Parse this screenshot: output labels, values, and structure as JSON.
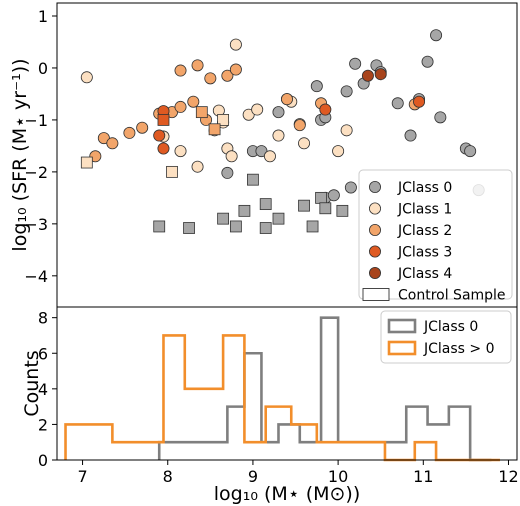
{
  "chart_data": [
    {
      "type": "scatter",
      "ylabel": "log₁₀ (SFR (M⋆ yr⁻¹))",
      "xlim": [
        6.7,
        12.1
      ],
      "ylim": [
        -4.6,
        1.25
      ],
      "yticks": [
        "1",
        "0",
        "−1",
        "−2",
        "−3",
        "−4"
      ],
      "ytick_values": [
        1,
        0,
        -1,
        -2,
        -3,
        -4
      ],
      "colors": {
        "JClass 0": "#a6a6a6",
        "JClass 1": "#fce0c2",
        "JClass 2": "#f2a56a",
        "JClass 3": "#df5a22",
        "JClass 4": "#a8441c"
      },
      "legend": {
        "position": "lower-right",
        "entries": [
          "JClass 0",
          "JClass 1",
          "JClass 2",
          "JClass 3",
          "JClass 4",
          "Control Sample"
        ]
      },
      "series": [
        {
          "name": "JClass 0",
          "marker": "circle",
          "points": [
            [
              8.7,
              -2.02
            ],
            [
              9.0,
              -1.6
            ],
            [
              9.1,
              -1.6
            ],
            [
              9.3,
              -0.85
            ],
            [
              9.4,
              -0.6
            ],
            [
              9.75,
              -0.35
            ],
            [
              9.8,
              -1.0
            ],
            [
              9.85,
              -0.95
            ],
            [
              9.85,
              -2.5
            ],
            [
              9.95,
              -2.45
            ],
            [
              10.1,
              -0.45
            ],
            [
              10.15,
              -2.3
            ],
            [
              10.2,
              0.08
            ],
            [
              10.3,
              -0.3
            ],
            [
              10.45,
              0.05
            ],
            [
              10.5,
              -0.08
            ],
            [
              10.7,
              -0.68
            ],
            [
              10.85,
              -1.3
            ],
            [
              10.95,
              -0.6
            ],
            [
              11.05,
              0.12
            ],
            [
              11.15,
              0.63
            ],
            [
              11.2,
              -0.95
            ],
            [
              11.5,
              -1.55
            ],
            [
              11.55,
              -1.6
            ],
            [
              11.65,
              -2.35
            ]
          ]
        },
        {
          "name": "JClass 1",
          "marker": "circle",
          "points": [
            [
              7.05,
              -0.18
            ],
            [
              7.95,
              -1.32
            ],
            [
              8.15,
              -1.6
            ],
            [
              8.35,
              -1.9
            ],
            [
              8.55,
              -1.2
            ],
            [
              8.6,
              -0.82
            ],
            [
              8.65,
              -1.05
            ],
            [
              8.7,
              -1.55
            ],
            [
              8.75,
              -1.7
            ],
            [
              8.8,
              0.45
            ],
            [
              8.95,
              -0.9
            ],
            [
              9.05,
              -0.8
            ],
            [
              9.2,
              -1.7
            ],
            [
              9.3,
              -1.3
            ],
            [
              9.45,
              -0.65
            ],
            [
              9.55,
              -1.08
            ],
            [
              9.6,
              -1.45
            ],
            [
              10.0,
              -1.6
            ],
            [
              10.1,
              -1.2
            ]
          ]
        },
        {
          "name": "JClass 2",
          "marker": "circle",
          "points": [
            [
              7.15,
              -1.7
            ],
            [
              7.25,
              -1.35
            ],
            [
              7.35,
              -1.45
            ],
            [
              7.55,
              -1.25
            ],
            [
              7.7,
              -1.15
            ],
            [
              7.9,
              -0.88
            ],
            [
              8.05,
              -0.85
            ],
            [
              8.15,
              -0.05
            ],
            [
              8.15,
              -0.75
            ],
            [
              8.3,
              -0.65
            ],
            [
              8.35,
              0.05
            ],
            [
              8.45,
              -1.0
            ],
            [
              8.5,
              -0.2
            ],
            [
              8.7,
              -0.15
            ],
            [
              8.8,
              -0.03
            ],
            [
              9.4,
              -0.6
            ],
            [
              9.55,
              -1.1
            ],
            [
              9.8,
              -0.68
            ],
            [
              10.9,
              -0.7
            ]
          ]
        },
        {
          "name": "JClass 3",
          "marker": "circle",
          "points": [
            [
              7.9,
              -1.3
            ],
            [
              7.95,
              -1.55
            ],
            [
              7.95,
              -0.83
            ],
            [
              9.85,
              -0.8
            ],
            [
              10.95,
              -0.65
            ]
          ]
        },
        {
          "name": "JClass 4",
          "marker": "circle",
          "points": [
            [
              10.35,
              -0.15
            ],
            [
              10.5,
              -0.12
            ]
          ]
        },
        {
          "name": "Control JClass 0",
          "marker": "square",
          "points": [
            [
              7.9,
              -3.05
            ],
            [
              8.25,
              -3.08
            ],
            [
              8.65,
              -2.9
            ],
            [
              8.8,
              -3.05
            ],
            [
              8.9,
              -2.75
            ],
            [
              9.0,
              -2.15
            ],
            [
              9.15,
              -3.08
            ],
            [
              9.15,
              -2.62
            ],
            [
              9.3,
              -2.9
            ],
            [
              9.6,
              -2.65
            ],
            [
              9.7,
              -3.05
            ],
            [
              9.8,
              -2.5
            ],
            [
              9.85,
              -2.7
            ],
            [
              10.05,
              -2.75
            ]
          ]
        },
        {
          "name": "Control JClass 1",
          "marker": "square",
          "points": [
            [
              7.05,
              -1.82
            ],
            [
              8.05,
              -2.0
            ],
            [
              8.65,
              -1.0
            ]
          ]
        },
        {
          "name": "Control JClass 2",
          "marker": "square",
          "points": [
            [
              8.4,
              -0.85
            ],
            [
              8.55,
              -1.18
            ]
          ]
        },
        {
          "name": "Control JClass 3",
          "marker": "square",
          "points": [
            [
              7.95,
              -1.0
            ]
          ]
        }
      ]
    },
    {
      "type": "histogram",
      "xlabel": "log₁₀ (M⋆ (M⊙))",
      "ylabel": "Counts",
      "xlim": [
        6.7,
        12.1
      ],
      "ylim": [
        0,
        8.6
      ],
      "xticks": [
        "7",
        "8",
        "9",
        "10",
        "11",
        "12"
      ],
      "xtick_values": [
        7,
        8,
        9,
        10,
        11,
        12
      ],
      "yticks": [
        "0",
        "2",
        "4",
        "6",
        "8"
      ],
      "ytick_values": [
        0,
        2,
        4,
        6,
        8
      ],
      "legend": {
        "position": "upper-right",
        "entries": [
          "JClass 0",
          "JClass > 0"
        ]
      },
      "series": [
        {
          "name": "JClass 0",
          "color": "#7f7f7f",
          "edges": [
            7.9,
            8.7,
            8.9,
            9.1,
            9.3,
            9.55,
            9.8,
            10.0,
            10.8,
            11.05,
            11.3,
            11.55,
            11.8
          ],
          "counts": [
            1,
            3,
            6,
            1,
            2,
            1,
            8,
            1,
            3,
            2,
            3,
            0
          ]
        },
        {
          "name": "JClass > 0",
          "color": "#f28e2b",
          "edges": [
            6.8,
            7.35,
            7.95,
            8.2,
            8.65,
            8.9,
            9.15,
            9.45,
            9.75,
            10.55,
            10.9,
            11.15,
            11.9
          ],
          "counts": [
            2,
            1,
            7,
            4,
            7,
            1,
            3,
            2,
            1,
            0,
            1,
            0
          ]
        }
      ]
    }
  ]
}
